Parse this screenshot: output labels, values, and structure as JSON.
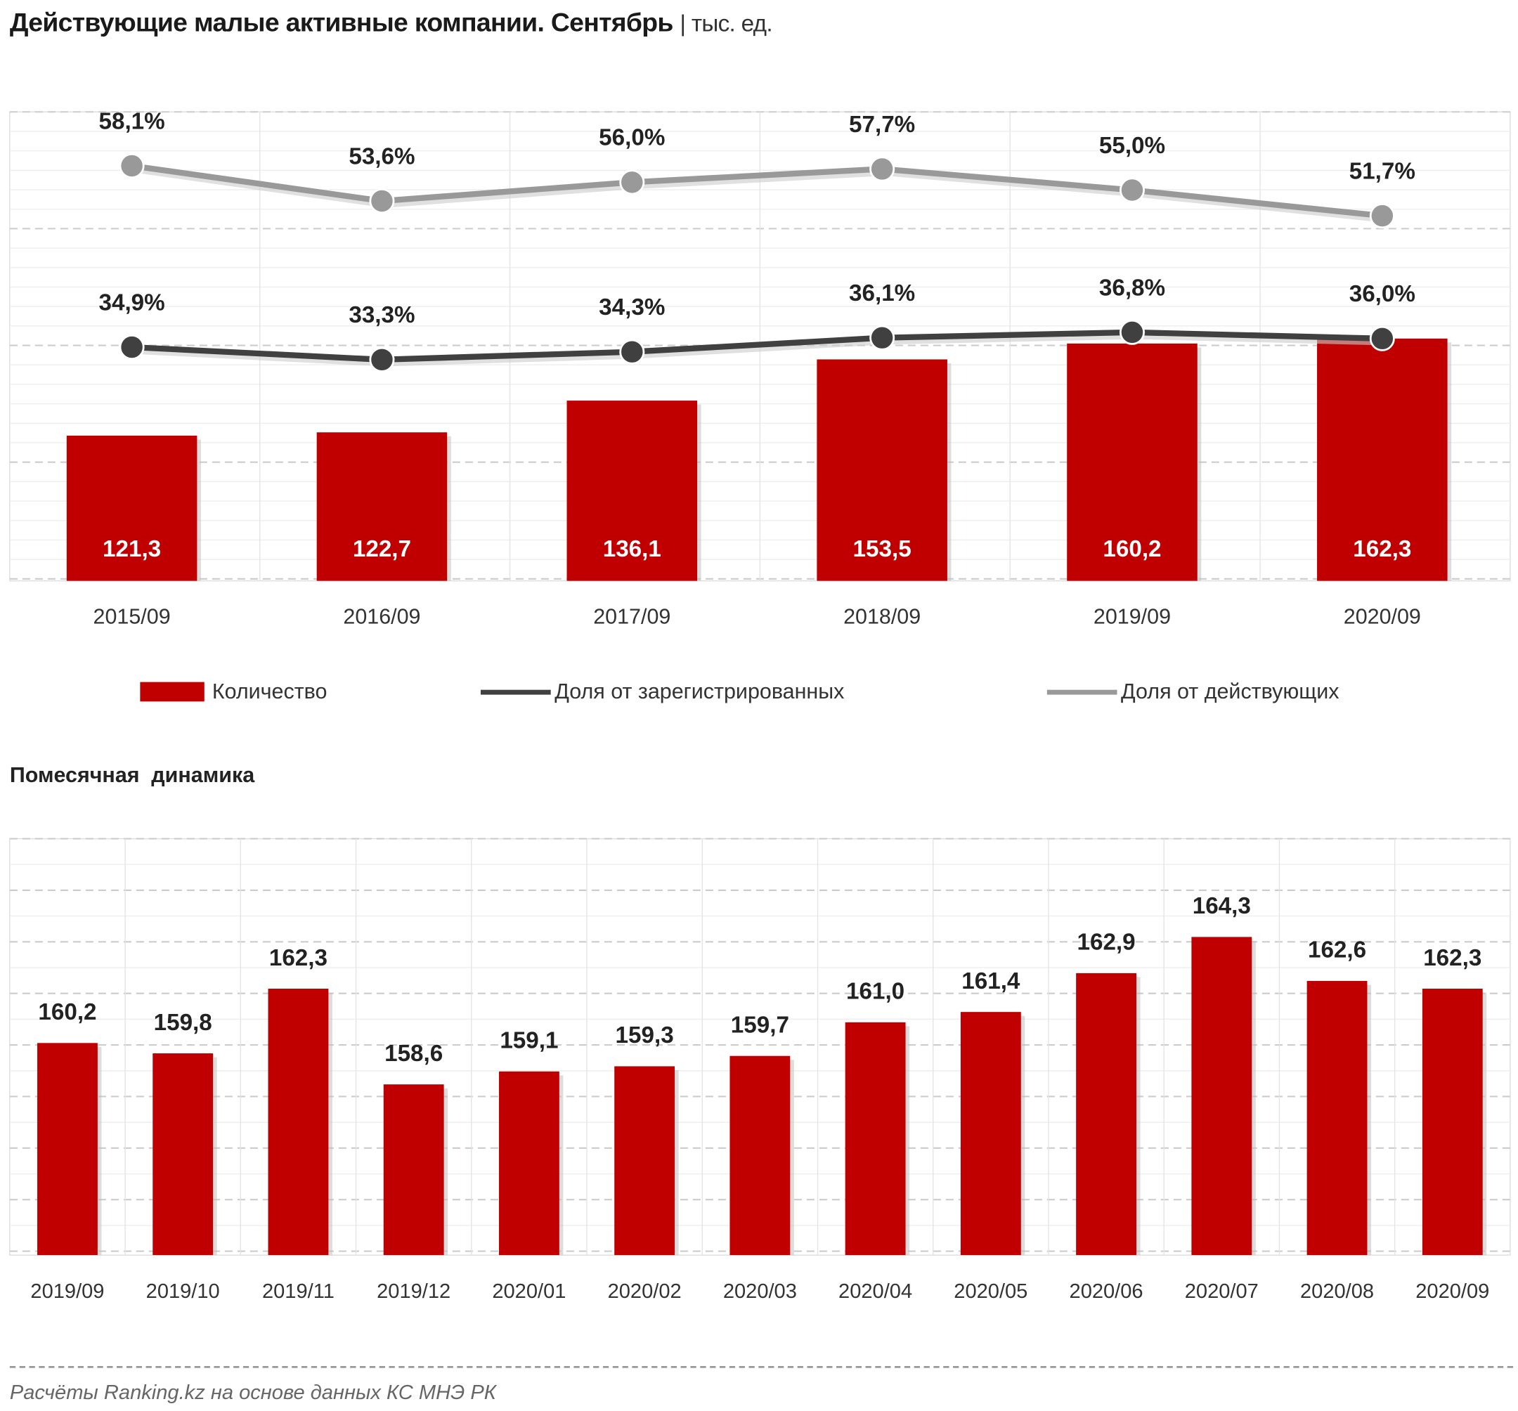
{
  "title": "Действующие малые активные компании. Сентябрь",
  "unit": "| тыс. ед.",
  "subtitle": "Помесячная  динамика",
  "footer": "Расчёты Ranking.kz на основе данных КС МНЭ РК",
  "colors": {
    "bar": "#c00000",
    "line_registered": "#404040",
    "line_active": "#999999"
  },
  "legend": [
    "Количество",
    "Доля от зарегистрированных",
    "Доля от действующих"
  ],
  "chart_data": [
    {
      "type": "bar+line",
      "categories": [
        "2015/09",
        "2016/09",
        "2017/09",
        "2018/09",
        "2019/09",
        "2020/09"
      ],
      "series": [
        {
          "name": "Количество",
          "type": "bar",
          "values": [
            121.3,
            122.7,
            136.1,
            153.5,
            160.2,
            162.3
          ],
          "labels": [
            "121,3",
            "122,7",
            "136,1",
            "153,5",
            "160,2",
            "162,3"
          ]
        },
        {
          "name": "Доля от зарегистрированных",
          "type": "line",
          "unit": "%",
          "values": [
            34.9,
            33.3,
            34.3,
            36.1,
            36.8,
            36.0
          ],
          "labels": [
            "34,9%",
            "33,3%",
            "34,3%",
            "36,1%",
            "36,8%",
            "36,0%"
          ]
        },
        {
          "name": "Доля от действующих",
          "type": "line",
          "unit": "%",
          "values": [
            58.1,
            53.6,
            56.0,
            57.7,
            55.0,
            51.7
          ],
          "labels": [
            "58,1%",
            "53,6%",
            "56,0%",
            "57,7%",
            "55,0%",
            "51,7%"
          ]
        }
      ],
      "ylim": [
        60,
        258
      ],
      "y2lim": [
        5,
        65
      ],
      "grid": true,
      "legend_position": "bottom"
    },
    {
      "type": "bar",
      "title": "Помесячная  динамика",
      "categories": [
        "2019/09",
        "2019/10",
        "2019/11",
        "2019/12",
        "2020/01",
        "2020/02",
        "2020/03",
        "2020/04",
        "2020/05",
        "2020/06",
        "2020/07",
        "2020/08",
        "2020/09"
      ],
      "values": [
        160.2,
        159.8,
        162.3,
        158.6,
        159.1,
        159.3,
        159.7,
        161.0,
        161.4,
        162.9,
        164.3,
        162.6,
        162.3
      ],
      "labels": [
        "160,2",
        "159,8",
        "162,3",
        "158,6",
        "159,1",
        "159,3",
        "159,7",
        "161,0",
        "161,4",
        "162,9",
        "164,3",
        "162,6",
        "162,3"
      ],
      "ylim": [
        152,
        168.1
      ],
      "grid": true
    }
  ]
}
